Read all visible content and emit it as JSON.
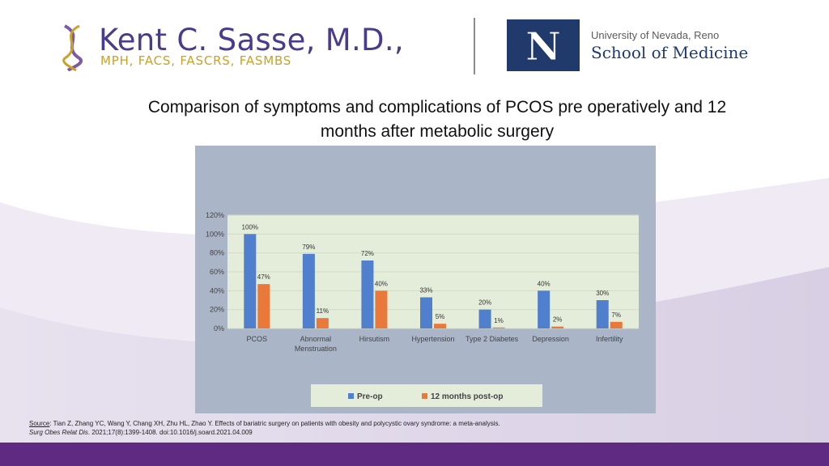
{
  "header": {
    "logo_name": "Kent C. Sasse, M.D.,",
    "logo_credentials": "MPH, FACS, FASCRS, FASMBS",
    "university_line": "University of Nevada, Reno",
    "school_line": "School of Medicine",
    "university_mark": "N"
  },
  "slide_title": "Comparison of symptoms and complications of PCOS pre operatively and 12 months after metabolic surgery",
  "source": {
    "label": "Source",
    "text": ": Tian Z, Zhang YC, Wang Y, Chang XH, Zhu HL, Zhao Y. Effects of bariatric surgery on patients with obesity and polycystic ovary syndrome: a meta-analysis. ",
    "journal": "Surg Obes Relat Dis",
    "tail": ". 2021;17(8):1399-1408. doi:10.1016/j.soard.2021.04.009"
  },
  "colors": {
    "preop": "#4f7fcd",
    "postop": "#e9793a",
    "plot_bg": "#e4edd9",
    "panel_bg": "#aab5c7",
    "header_text": "#4a3b8c",
    "credentials": "#c9a227",
    "footer": "#5e2a82"
  },
  "chart_data": {
    "type": "bar",
    "title": "",
    "xlabel": "",
    "ylabel": "",
    "ylim": [
      0,
      120
    ],
    "yticks": [
      "0%",
      "20%",
      "40%",
      "60%",
      "80%",
      "100%",
      "120%"
    ],
    "categories": [
      "PCOS",
      "Abnormal Menstruation",
      "Hirsutism",
      "Hypertension",
      "Type 2 Diabetes",
      "Depression",
      "Infertility"
    ],
    "series": [
      {
        "name": "Pre-op",
        "values": [
          100,
          79,
          72,
          33,
          20,
          40,
          30
        ],
        "labels": [
          "100%",
          "79%",
          "72%",
          "33%",
          "20%",
          "40%",
          "30%"
        ]
      },
      {
        "name": "12 months post-op",
        "values": [
          47,
          11,
          40,
          5,
          1,
          2,
          7
        ],
        "labels": [
          "47%",
          "11%",
          "40%",
          "5%",
          "1%",
          "2%",
          "7%"
        ]
      }
    ],
    "grid": true,
    "legend_position": "bottom"
  }
}
